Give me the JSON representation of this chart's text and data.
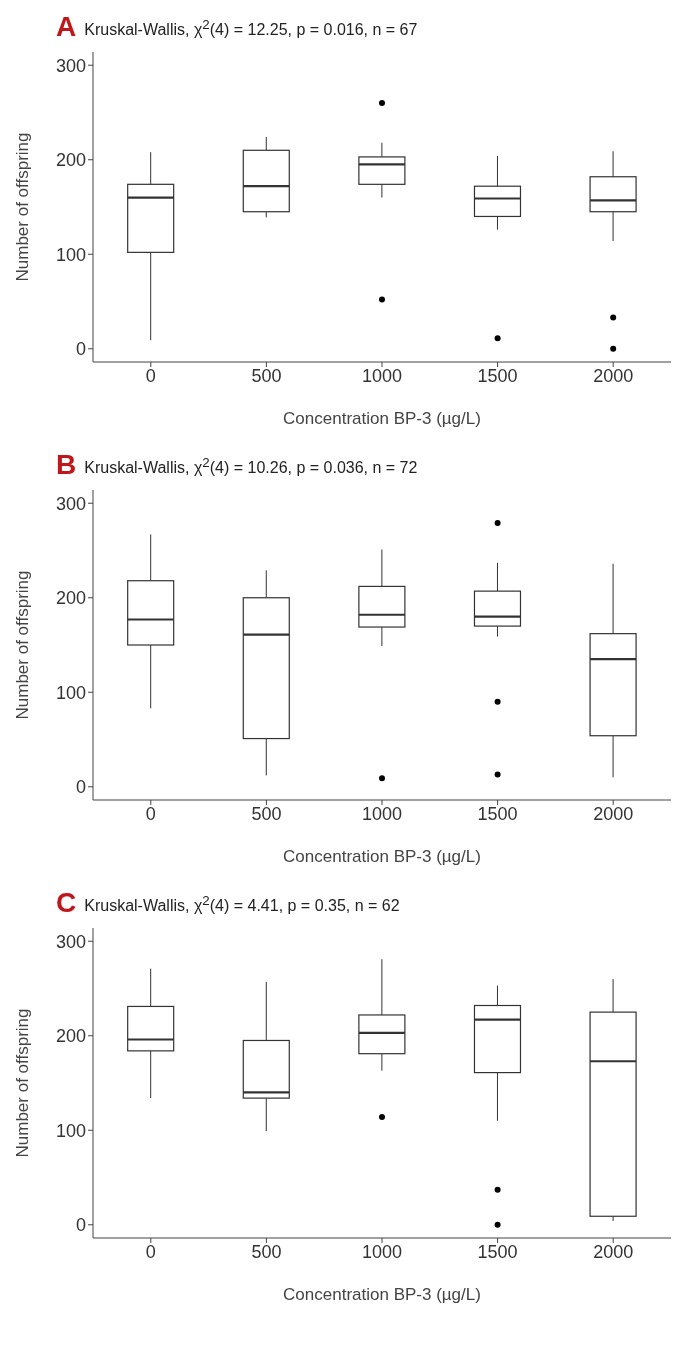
{
  "chart_data": [
    {
      "type": "box",
      "title": "Kruskal-Wallis, χ$^{2}$(4) = 12.25, p = 0.016, n = 67",
      "annotations": [
        "A"
      ],
      "xlabel": "Concentration BP-3 (µg/L)",
      "ylabel": "Number of offspring",
      "categories": [
        "0",
        "500",
        "1000",
        "1500",
        "2000"
      ],
      "ylim": [
        -14,
        314
      ],
      "yticks": [
        0,
        100,
        200,
        300
      ],
      "grid": false,
      "color": "#333333",
      "boxes": [
        {
          "low": 9,
          "q1": 102,
          "median": 160,
          "q3": 174,
          "high": 208
        },
        {
          "low": 139,
          "q1": 145,
          "median": 172,
          "q3": 210,
          "high": 224
        },
        {
          "low": 160,
          "q1": 174,
          "median": 195,
          "q3": 203,
          "high": 218,
          "outliers": [
            260,
            52
          ]
        },
        {
          "low": 126,
          "q1": 140,
          "median": 159,
          "q3": 172,
          "high": 204,
          "outliers": [
            11
          ]
        },
        {
          "low": 114,
          "q1": 145,
          "median": 157,
          "q3": 182,
          "high": 209,
          "outliers": [
            33,
            0
          ]
        }
      ]
    },
    {
      "type": "box",
      "title": "Kruskal-Wallis, χ$^{2}$(4) = 10.26, p = 0.036, n = 72",
      "annotations": [
        "B"
      ],
      "xlabel": "Concentration BP-3 (µg/L)",
      "ylabel": "Number of offspring",
      "categories": [
        "0",
        "500",
        "1000",
        "1500",
        "2000"
      ],
      "ylim": [
        -14,
        314
      ],
      "yticks": [
        0,
        100,
        200,
        300
      ],
      "grid": false,
      "color": "#333333",
      "boxes": [
        {
          "low": 83,
          "q1": 150,
          "median": 177,
          "q3": 218,
          "high": 267
        },
        {
          "low": 12,
          "q1": 51,
          "median": 161,
          "q3": 200,
          "high": 229
        },
        {
          "low": 149,
          "q1": 169,
          "median": 182,
          "q3": 212,
          "high": 251,
          "outliers": [
            9
          ]
        },
        {
          "low": 159,
          "q1": 170,
          "median": 180,
          "q3": 207,
          "high": 237,
          "outliers": [
            279,
            90,
            13
          ]
        },
        {
          "low": 10,
          "q1": 54,
          "median": 135,
          "q3": 162,
          "high": 236
        }
      ]
    },
    {
      "type": "box",
      "title": "Kruskal-Wallis, χ$^{2}$(4) = 4.41, p = 0.35, n = 62",
      "annotations": [
        "C"
      ],
      "xlabel": "Concentration BP-3 (µg/L)",
      "ylabel": "Number of offspring",
      "categories": [
        "0",
        "500",
        "1000",
        "1500",
        "2000"
      ],
      "ylim": [
        -14,
        314
      ],
      "yticks": [
        0,
        100,
        200,
        300
      ],
      "grid": false,
      "color": "#333333",
      "boxes": [
        {
          "low": 134,
          "q1": 184,
          "median": 196,
          "q3": 231,
          "high": 271
        },
        {
          "low": 99,
          "q1": 134,
          "median": 140,
          "q3": 195,
          "high": 257
        },
        {
          "low": 163,
          "q1": 181,
          "median": 203,
          "q3": 222,
          "high": 281,
          "outliers": [
            114
          ]
        },
        {
          "low": 110,
          "q1": 161,
          "median": 217,
          "q3": 232,
          "high": 253,
          "outliers": [
            37,
            0
          ]
        },
        {
          "low": 4,
          "q1": 9,
          "median": 173,
          "q3": 225,
          "high": 260
        }
      ]
    }
  ]
}
